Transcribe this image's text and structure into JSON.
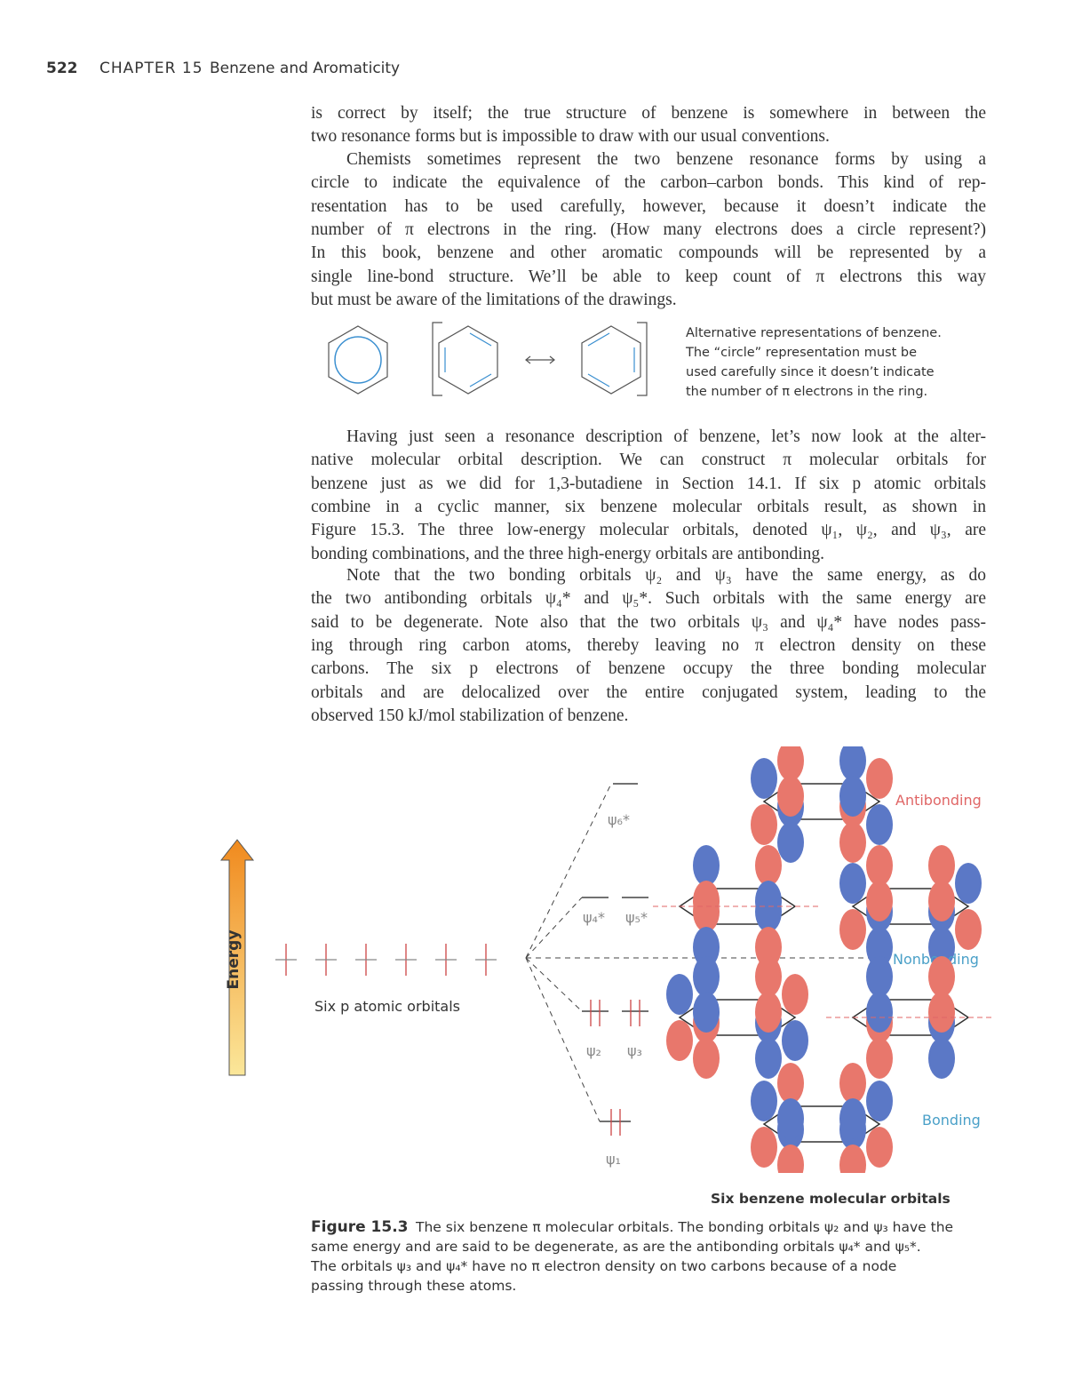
{
  "header": {
    "page_number": "522",
    "chapter": "CHAPTER 15",
    "chapter_title": "Benzene and Aromaticity"
  },
  "paragraphs": [
    [
      "is correct by itself; the true structure of benzene is somewhere in between the",
      "two resonance forms but is impossible to draw with our usual conventions."
    ],
    [
      "Chemists sometimes represent the two benzene resonance forms by using a",
      "circle to indicate the equivalence of the carbon–carbon bonds. This kind of rep-",
      "resentation has to be used carefully, however, because it doesn’t indicate the",
      "number of π electrons in the ring. (How many electrons does a circle represent?)",
      "In this book, benzene and other aromatic compounds will be represented by a",
      "single line-bond structure. We’ll be able to keep count of π electrons this way",
      "but must be aware of the limitations of the drawings."
    ],
    [
      "Having just seen a resonance description of benzene, let’s now look at the alter-",
      "native molecular orbital description. We can construct π molecular orbitals for",
      "benzene just as we did for 1,3-butadiene in Section 14.1. If six p atomic orbitals",
      "combine in a cyclic manner, six benzene molecular orbitals result, as shown in",
      "Figure 15.3. The three low-energy molecular orbitals, denoted ψ₁, ψ₂, and ψ₃, are",
      "bonding combinations, and the three high-energy orbitals are antibonding."
    ],
    [
      "Note that the two bonding orbitals ψ₂ and ψ₃ have the same energy, as do",
      "the two antibonding orbitals ψ₄* and ψ₅*. Such orbitals with the same energy are",
      "said to be degenerate. Note also that the two orbitals ψ₃ and ψ₄* have nodes pass-",
      "ing through ring carbon atoms, thereby leaving no π electron density on these",
      "carbons. The six p electrons of benzene occupy the three bonding molecular",
      "orbitals and are delocalized over the entire conjugated system, leading to the",
      "observed 150 kJ/mol stabilization of benzene."
    ]
  ],
  "benzene_figure": {
    "caption": [
      "Alternative representations of benzene.",
      "The “circle” representation must be",
      "used carefully since it doesn’t indicate",
      "the number of π electrons in the ring."
    ]
  },
  "mo_figure": {
    "energy_label": "Energy",
    "atomic_orbitals_label": "Six p atomic orbitals",
    "psi6": "ψ₆*",
    "psi4": "ψ₄*",
    "psi5": "ψ₅*",
    "psi2": "ψ₂",
    "psi3": "ψ₃",
    "psi1": "ψ₁",
    "antibonding": "Antibonding",
    "nonbonding": "Nonbonding",
    "bonding": "Bonding",
    "title": "Six benzene molecular orbitals"
  },
  "figure_caption": {
    "label": "Figure 15.3",
    "lines": [
      "The six benzene π molecular orbitals. The bonding orbitals ψ₂ and ψ₃ have the",
      "same energy and are said to be degenerate, as are the antibonding orbitals ψ₄* and ψ₅*.",
      "The orbitals ψ₃ and ψ₄* have no π electron density on two carbons because of a node",
      "passing through these atoms."
    ]
  }
}
